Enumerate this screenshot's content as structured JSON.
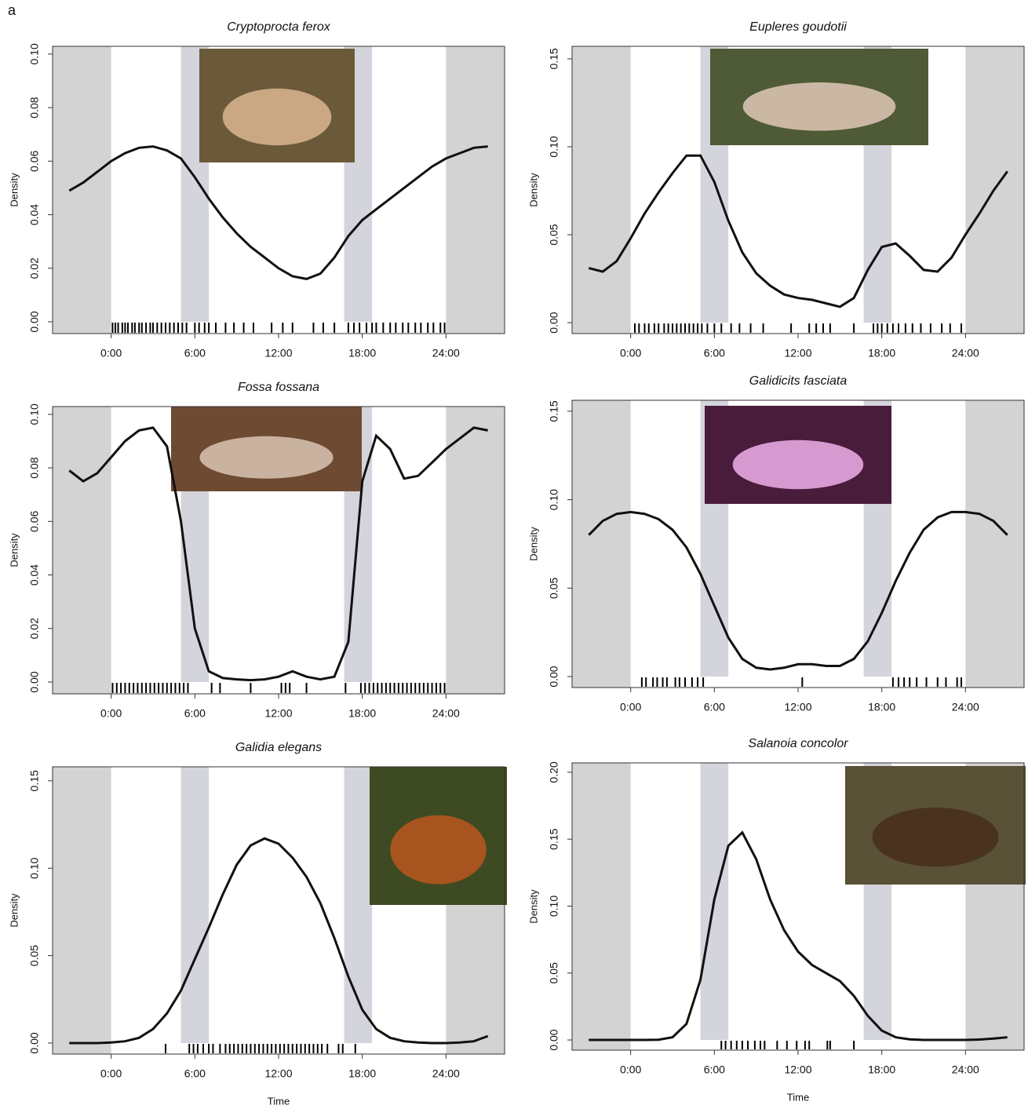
{
  "figure_label": "a",
  "chart_data": [
    {
      "type": "line",
      "title": "Cryptoprocta ferox",
      "ylabel": "Density",
      "x": [
        -3,
        -2,
        -1,
        0,
        1,
        2,
        3,
        4,
        5,
        6,
        7,
        8,
        9,
        10,
        11,
        12,
        13,
        14,
        15,
        16,
        17,
        18,
        19,
        20,
        21,
        22,
        23,
        24,
        25,
        26,
        27
      ],
      "values": [
        0.049,
        0.052,
        0.056,
        0.06,
        0.063,
        0.065,
        0.0655,
        0.064,
        0.061,
        0.054,
        0.046,
        0.039,
        0.033,
        0.028,
        0.024,
        0.02,
        0.017,
        0.016,
        0.018,
        0.024,
        0.032,
        0.038,
        0.042,
        0.046,
        0.05,
        0.054,
        0.058,
        0.061,
        0.063,
        0.065,
        0.0655
      ],
      "color": "#111111",
      "rug": [
        0.1,
        0.3,
        0.5,
        0.8,
        1.0,
        1.2,
        1.5,
        1.7,
        2.0,
        2.2,
        2.5,
        2.8,
        3.0,
        3.3,
        3.6,
        3.9,
        4.2,
        4.5,
        4.8,
        5.1,
        5.4,
        6.0,
        6.3,
        6.7,
        7.0,
        7.5,
        8.2,
        8.8,
        9.5,
        10.2,
        11.5,
        12.3,
        13.0,
        14.5,
        15.2,
        16.0,
        17.0,
        17.4,
        17.8,
        18.3,
        18.7,
        19.0,
        19.5,
        20.0,
        20.4,
        20.9,
        21.3,
        21.8,
        22.2,
        22.7,
        23.1,
        23.6,
        23.9
      ],
      "night_spans": [
        [
          -4.2,
          0
        ],
        [
          24,
          28.2
        ]
      ],
      "twilight_spans": [
        [
          5,
          7
        ],
        [
          16.7,
          18.7
        ]
      ],
      "night_color": "#d3d3d3",
      "twilight_color": "#d4d4dc",
      "xlim": [
        -4.2,
        28.2
      ],
      "ylim": [
        -0.0044,
        0.1029
      ],
      "xticks": [
        {
          "value": 0,
          "label": "0:00"
        },
        {
          "value": 6,
          "label": "6:00"
        },
        {
          "value": 12,
          "label": "12:00"
        },
        {
          "value": 18,
          "label": "18:00"
        },
        {
          "value": 24,
          "label": "24:00"
        }
      ],
      "yticks": [
        {
          "value": 0,
          "label": "0.00"
        },
        0.02,
        0.04,
        0.06,
        0.08,
        {
          "value": 0.1,
          "label": "0.10"
        }
      ]
    },
    {
      "type": "line",
      "title": "Eupleres goudotii",
      "ylabel": "Density",
      "x": [
        -3,
        -2,
        -1,
        0,
        1,
        2,
        3,
        4,
        5,
        6,
        7,
        8,
        9,
        10,
        11,
        12,
        13,
        14,
        15,
        16,
        17,
        18,
        19,
        20,
        21,
        22,
        23,
        24,
        25,
        26,
        27
      ],
      "values": [
        0.031,
        0.029,
        0.035,
        0.048,
        0.062,
        0.074,
        0.085,
        0.095,
        0.095,
        0.08,
        0.058,
        0.04,
        0.028,
        0.021,
        0.016,
        0.014,
        0.013,
        0.011,
        0.009,
        0.014,
        0.03,
        0.043,
        0.045,
        0.038,
        0.03,
        0.029,
        0.037,
        0.05,
        0.062,
        0.075,
        0.086
      ],
      "color": "#111111",
      "rug": [
        0.3,
        0.6,
        1.0,
        1.3,
        1.7,
        2.0,
        2.4,
        2.7,
        3.0,
        3.3,
        3.6,
        3.9,
        4.2,
        4.5,
        4.8,
        5.1,
        5.5,
        6.0,
        6.5,
        7.2,
        7.8,
        8.6,
        9.5,
        11.5,
        12.8,
        13.3,
        13.8,
        14.3,
        16.0,
        17.4,
        17.7,
        18.0,
        18.4,
        18.8,
        19.2,
        19.7,
        20.2,
        20.8,
        21.5,
        22.3,
        22.9,
        23.7
      ],
      "night_spans": [
        [
          -4.2,
          0
        ],
        [
          24,
          28.2
        ]
      ],
      "twilight_spans": [
        [
          5,
          7
        ],
        [
          16.7,
          18.7
        ]
      ],
      "night_color": "#d3d3d3",
      "twilight_color": "#d4d4dc",
      "xlim": [
        -4.2,
        28.2
      ],
      "ylim": [
        -0.0062,
        0.1571
      ],
      "xticks": [
        {
          "value": 0,
          "label": "0:00"
        },
        {
          "value": 6,
          "label": "6:00"
        },
        {
          "value": 12,
          "label": "12:00"
        },
        {
          "value": 18,
          "label": "18:00"
        },
        {
          "value": 24,
          "label": "24:00"
        }
      ],
      "yticks": [
        {
          "value": 0,
          "label": "0.00"
        },
        0.05,
        {
          "value": 0.1,
          "label": "0.10"
        },
        0.15
      ]
    },
    {
      "type": "line",
      "title": "Fossa fossana",
      "ylabel": "Density",
      "x": [
        -3,
        -2,
        -1,
        0,
        1,
        2,
        3,
        4,
        5,
        6,
        7,
        8,
        9,
        10,
        11,
        12,
        13,
        14,
        15,
        16,
        17,
        18,
        19,
        20,
        21,
        22,
        23,
        24,
        25,
        26,
        27
      ],
      "values": [
        0.079,
        0.075,
        0.078,
        0.084,
        0.09,
        0.094,
        0.095,
        0.088,
        0.06,
        0.02,
        0.004,
        0.0015,
        0.001,
        0.0007,
        0.001,
        0.002,
        0.004,
        0.002,
        0.001,
        0.002,
        0.015,
        0.075,
        0.092,
        0.087,
        0.076,
        0.077,
        0.082,
        0.087,
        0.091,
        0.095,
        0.094
      ],
      "color": "#111111",
      "rug": [
        0.1,
        0.4,
        0.7,
        1.0,
        1.3,
        1.6,
        1.9,
        2.2,
        2.5,
        2.8,
        3.1,
        3.4,
        3.7,
        4.0,
        4.3,
        4.6,
        4.9,
        5.2,
        5.5,
        7.2,
        7.8,
        10.0,
        12.2,
        12.5,
        12.8,
        14.0,
        16.8,
        17.9,
        18.2,
        18.5,
        18.8,
        19.1,
        19.4,
        19.7,
        20.0,
        20.3,
        20.6,
        20.9,
        21.2,
        21.5,
        21.8,
        22.1,
        22.4,
        22.7,
        23.0,
        23.3,
        23.6,
        23.9
      ],
      "night_spans": [
        [
          -4.2,
          0
        ],
        [
          24,
          28.2
        ]
      ],
      "twilight_spans": [
        [
          5,
          7
        ],
        [
          16.7,
          18.7
        ]
      ],
      "night_color": "#d3d3d3",
      "twilight_color": "#d4d4dc",
      "xlim": [
        -4.2,
        28.2
      ],
      "ylim": [
        -0.0044,
        0.1029
      ],
      "xticks": [
        {
          "value": 0,
          "label": "0:00"
        },
        {
          "value": 6,
          "label": "6:00"
        },
        {
          "value": 12,
          "label": "12:00"
        },
        {
          "value": 18,
          "label": "18:00"
        },
        {
          "value": 24,
          "label": "24:00"
        }
      ],
      "yticks": [
        {
          "value": 0,
          "label": "0.00"
        },
        0.02,
        0.04,
        0.06,
        0.08,
        {
          "value": 0.1,
          "label": "0.10"
        }
      ]
    },
    {
      "type": "line",
      "title": "Galidicits fasciata",
      "ylabel": "Density",
      "x": [
        -3,
        -2,
        -1,
        0,
        1,
        2,
        3,
        4,
        5,
        6,
        7,
        8,
        9,
        10,
        11,
        12,
        13,
        14,
        15,
        16,
        17,
        18,
        19,
        20,
        21,
        22,
        23,
        24,
        25,
        26,
        27
      ],
      "values": [
        0.08,
        0.088,
        0.092,
        0.093,
        0.092,
        0.089,
        0.083,
        0.073,
        0.058,
        0.04,
        0.022,
        0.01,
        0.005,
        0.004,
        0.005,
        0.007,
        0.007,
        0.006,
        0.006,
        0.01,
        0.02,
        0.036,
        0.054,
        0.07,
        0.083,
        0.09,
        0.093,
        0.093,
        0.092,
        0.088,
        0.08
      ],
      "color": "#111111",
      "rug": [
        0.8,
        1.1,
        1.6,
        1.9,
        2.3,
        2.6,
        3.2,
        3.5,
        3.9,
        4.4,
        4.8,
        5.2,
        12.3,
        18.8,
        19.2,
        19.6,
        20.0,
        20.5,
        21.2,
        22.0,
        22.6,
        23.4,
        23.7
      ],
      "night_spans": [
        [
          -4.2,
          0
        ],
        [
          24,
          28.2
        ]
      ],
      "twilight_spans": [
        [
          5,
          7
        ],
        [
          16.7,
          18.7
        ]
      ],
      "night_color": "#d3d3d3",
      "twilight_color": "#d4d4dc",
      "xlim": [
        -4.2,
        28.2
      ],
      "ylim": [
        -0.0062,
        0.1562
      ],
      "xticks": [
        {
          "value": 0,
          "label": "0:00"
        },
        {
          "value": 6,
          "label": "6:00"
        },
        {
          "value": 12,
          "label": "12:00"
        },
        {
          "value": 18,
          "label": "18:00"
        },
        {
          "value": 24,
          "label": "24:00"
        }
      ],
      "yticks": [
        {
          "value": 0,
          "label": "0.00"
        },
        0.05,
        {
          "value": 0.1,
          "label": "0.10"
        },
        0.15
      ]
    },
    {
      "type": "line",
      "title": "Galidia elegans",
      "ylabel": "Density",
      "xlabel": "Time",
      "x": [
        -3,
        -2,
        -1,
        0,
        1,
        2,
        3,
        4,
        5,
        6,
        7,
        8,
        9,
        10,
        11,
        12,
        13,
        14,
        15,
        16,
        17,
        18,
        19,
        20,
        21,
        22,
        23,
        24,
        25,
        26,
        27
      ],
      "values": [
        0,
        0,
        0,
        0.0003,
        0.001,
        0.003,
        0.008,
        0.017,
        0.03,
        0.048,
        0.066,
        0.085,
        0.102,
        0.113,
        0.117,
        0.114,
        0.106,
        0.095,
        0.08,
        0.06,
        0.038,
        0.019,
        0.008,
        0.003,
        0.001,
        0.0003,
        0,
        0,
        0.0003,
        0.001,
        0.004
      ],
      "color": "#111111",
      "rug": [
        3.9,
        5.6,
        5.9,
        6.2,
        6.6,
        7.0,
        7.3,
        7.8,
        8.2,
        8.5,
        8.8,
        9.1,
        9.4,
        9.7,
        10.0,
        10.3,
        10.6,
        10.9,
        11.2,
        11.5,
        11.8,
        12.1,
        12.4,
        12.7,
        13.0,
        13.3,
        13.6,
        13.9,
        14.2,
        14.5,
        14.8,
        15.1,
        15.5,
        16.3,
        16.6,
        17.5
      ],
      "night_spans": [
        [
          -4.2,
          0
        ],
        [
          24,
          28.2
        ]
      ],
      "twilight_spans": [
        [
          5,
          7
        ],
        [
          16.7,
          18.7
        ]
      ],
      "night_color": "#d3d3d3",
      "twilight_color": "#d4d4dc",
      "xlim": [
        -4.2,
        28.2
      ],
      "ylim": [
        -0.0063,
        0.158
      ],
      "xticks": [
        {
          "value": 0,
          "label": "0:00"
        },
        {
          "value": 6,
          "label": "6:00"
        },
        {
          "value": 12,
          "label": "12:00"
        },
        {
          "value": 18,
          "label": "18:00"
        },
        {
          "value": 24,
          "label": "24:00"
        }
      ],
      "yticks": [
        {
          "value": 0,
          "label": "0.00"
        },
        0.05,
        {
          "value": 0.1,
          "label": "0.10"
        },
        0.15
      ]
    },
    {
      "type": "line",
      "title": "Salanoia concolor",
      "ylabel": "Density",
      "xlabel": "Time",
      "x": [
        -3,
        -2,
        -1,
        0,
        1,
        2,
        3,
        4,
        5,
        6,
        7,
        8,
        9,
        10,
        11,
        12,
        13,
        14,
        15,
        16,
        17,
        18,
        19,
        20,
        21,
        22,
        23,
        24,
        25,
        26,
        27
      ],
      "values": [
        0,
        0,
        0,
        0,
        0,
        0.0002,
        0.002,
        0.012,
        0.045,
        0.105,
        0.145,
        0.155,
        0.135,
        0.105,
        0.082,
        0.066,
        0.056,
        0.05,
        0.044,
        0.033,
        0.018,
        0.007,
        0.002,
        0.0005,
        0,
        0,
        0,
        0,
        0.0003,
        0.001,
        0.002
      ],
      "color": "#111111",
      "rug": [
        6.5,
        6.8,
        7.2,
        7.6,
        8.0,
        8.4,
        8.9,
        9.3,
        9.6,
        10.5,
        11.2,
        11.9,
        12.5,
        12.8,
        14.1,
        14.3,
        16.0
      ],
      "night_spans": [
        [
          -4.2,
          0
        ],
        [
          24,
          28.2
        ]
      ],
      "twilight_spans": [
        [
          5,
          7
        ],
        [
          16.7,
          18.7
        ]
      ],
      "night_color": "#d3d3d3",
      "twilight_color": "#d4d4dc",
      "xlim": [
        -4.2,
        28.2
      ],
      "ylim": [
        -0.0076,
        0.207
      ],
      "xticks": [
        {
          "value": 0,
          "label": "0:00"
        },
        {
          "value": 6,
          "label": "6:00"
        },
        {
          "value": 12,
          "label": "12:00"
        },
        {
          "value": 18,
          "label": "18:00"
        },
        {
          "value": 24,
          "label": "24:00"
        }
      ],
      "yticks": [
        {
          "value": 0,
          "label": "0.00"
        },
        0.05,
        {
          "value": 0.1,
          "label": "0.10"
        },
        0.15,
        {
          "value": 0.2,
          "label": "0.20"
        }
      ]
    }
  ]
}
